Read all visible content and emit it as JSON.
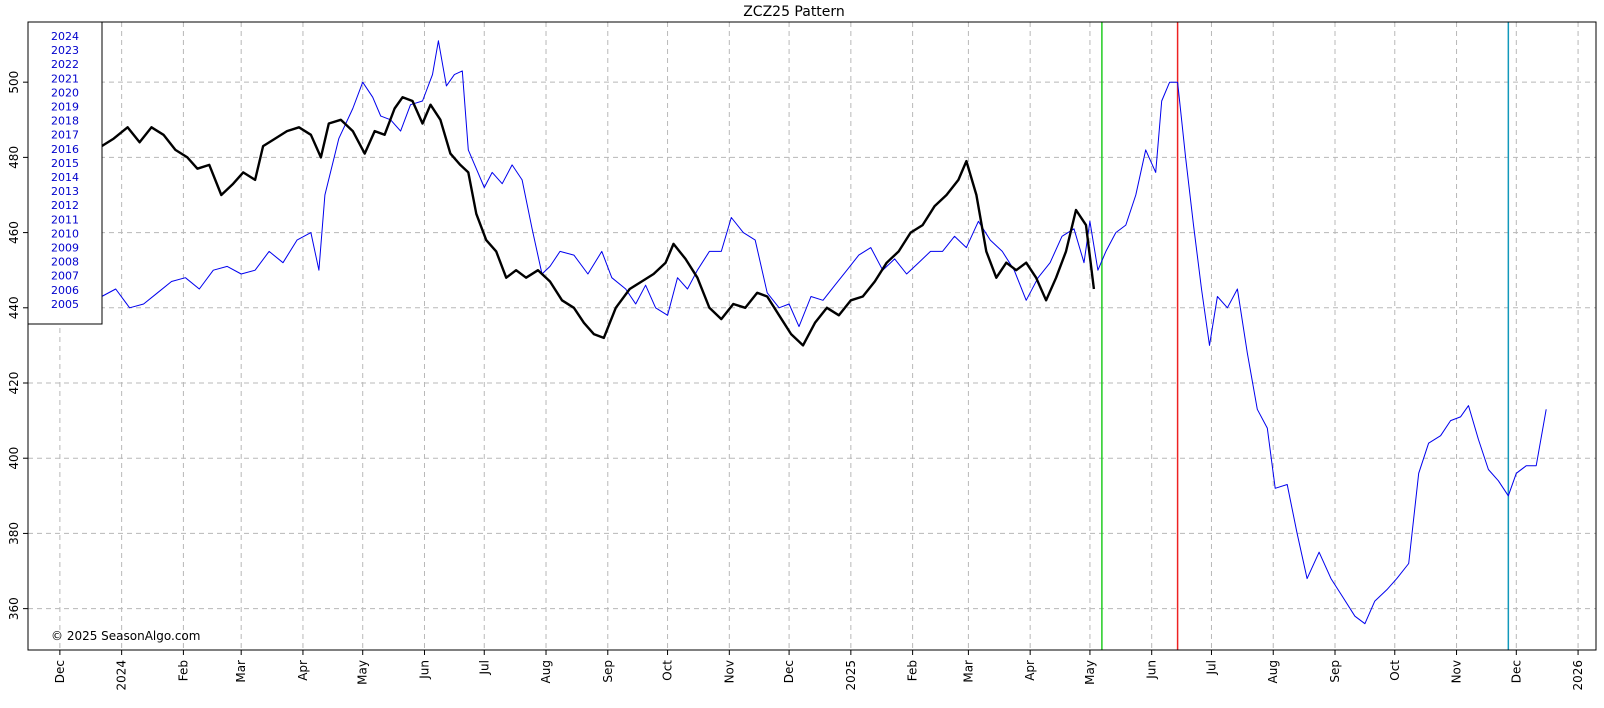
{
  "chart_data": {
    "type": "line",
    "title": "ZCZ25  Pattern",
    "copyright": "© 2025 SeasonAlgo.com",
    "xlabel": "",
    "ylabel": "",
    "x_range": [
      "2023-11-15",
      "2026-01-10"
    ],
    "ylim": [
      349,
      516
    ],
    "y_ticks": [
      360,
      380,
      400,
      420,
      440,
      460,
      480,
      500
    ],
    "x_ticks": [
      {
        "label": "Dec",
        "date": "2023-12-01"
      },
      {
        "label": "2024",
        "date": "2024-01-01"
      },
      {
        "label": "Feb",
        "date": "2024-02-01"
      },
      {
        "label": "Mar",
        "date": "2024-03-01"
      },
      {
        "label": "Apr",
        "date": "2024-04-01"
      },
      {
        "label": "May",
        "date": "2024-05-01"
      },
      {
        "label": "Jun",
        "date": "2024-06-01"
      },
      {
        "label": "Jul",
        "date": "2024-07-01"
      },
      {
        "label": "Aug",
        "date": "2024-08-01"
      },
      {
        "label": "Sep",
        "date": "2024-09-01"
      },
      {
        "label": "Oct",
        "date": "2024-10-01"
      },
      {
        "label": "Nov",
        "date": "2024-11-01"
      },
      {
        "label": "Dec",
        "date": "2024-12-01"
      },
      {
        "label": "2025",
        "date": "2025-01-01"
      },
      {
        "label": "Feb",
        "date": "2025-02-01"
      },
      {
        "label": "Mar",
        "date": "2025-03-01"
      },
      {
        "label": "Apr",
        "date": "2025-04-01"
      },
      {
        "label": "May",
        "date": "2025-05-01"
      },
      {
        "label": "Jun",
        "date": "2025-06-01"
      },
      {
        "label": "Jul",
        "date": "2025-07-01"
      },
      {
        "label": "Aug",
        "date": "2025-08-01"
      },
      {
        "label": "Sep",
        "date": "2025-09-01"
      },
      {
        "label": "Oct",
        "date": "2025-10-01"
      },
      {
        "label": "Nov",
        "date": "2025-11-01"
      },
      {
        "label": "Dec",
        "date": "2025-12-01"
      },
      {
        "label": "2026",
        "date": "2026-01-01"
      }
    ],
    "grid": true,
    "legend": {
      "placement": "top-left",
      "entries": [
        "2024",
        "2023",
        "2022",
        "2021",
        "2020",
        "2019",
        "2018",
        "2017",
        "2016",
        "2015",
        "2014",
        "2013",
        "2012",
        "2011",
        "2010",
        "2009",
        "2008",
        "2007",
        "2006",
        "2005"
      ]
    },
    "vlines": [
      {
        "date": "2025-05-07",
        "color": "#22cc22"
      },
      {
        "date": "2025-06-14",
        "color": "#ee2222"
      },
      {
        "date": "2025-11-27",
        "color": "#1199bb"
      }
    ],
    "series": [
      {
        "color": "#0000ee",
        "points": [
          [
            "2023-11-15",
            439
          ],
          [
            "2023-11-20",
            445
          ],
          [
            "2023-11-25",
            442
          ],
          [
            "2023-12-01",
            441
          ],
          [
            "2023-12-08",
            444
          ],
          [
            "2023-12-15",
            441
          ],
          [
            "2023-12-22",
            443
          ],
          [
            "2023-12-29",
            445
          ],
          [
            "2024-01-05",
            440
          ],
          [
            "2024-01-12",
            441
          ],
          [
            "2024-01-19",
            444
          ],
          [
            "2024-01-26",
            447
          ],
          [
            "2024-02-02",
            448
          ],
          [
            "2024-02-09",
            445
          ],
          [
            "2024-02-16",
            450
          ],
          [
            "2024-02-23",
            451
          ],
          [
            "2024-03-01",
            449
          ],
          [
            "2024-03-08",
            450
          ],
          [
            "2024-03-15",
            455
          ],
          [
            "2024-03-22",
            452
          ],
          [
            "2024-03-29",
            458
          ],
          [
            "2024-04-05",
            460
          ],
          [
            "2024-04-09",
            450
          ],
          [
            "2024-04-12",
            470
          ],
          [
            "2024-04-19",
            485
          ],
          [
            "2024-04-26",
            493
          ],
          [
            "2024-05-01",
            500
          ],
          [
            "2024-05-06",
            496
          ],
          [
            "2024-05-10",
            491
          ],
          [
            "2024-05-15",
            490
          ],
          [
            "2024-05-20",
            487
          ],
          [
            "2024-05-25",
            494
          ],
          [
            "2024-05-31",
            495
          ],
          [
            "2024-06-05",
            502
          ],
          [
            "2024-06-08",
            511
          ],
          [
            "2024-06-12",
            499
          ],
          [
            "2024-06-16",
            502
          ],
          [
            "2024-06-20",
            503
          ],
          [
            "2024-06-23",
            482
          ],
          [
            "2024-06-27",
            477
          ],
          [
            "2024-07-01",
            472
          ],
          [
            "2024-07-05",
            476
          ],
          [
            "2024-07-10",
            473
          ],
          [
            "2024-07-15",
            478
          ],
          [
            "2024-07-20",
            474
          ],
          [
            "2024-07-25",
            461
          ],
          [
            "2024-07-30",
            449
          ],
          [
            "2024-08-03",
            451
          ],
          [
            "2024-08-08",
            455
          ],
          [
            "2024-08-15",
            454
          ],
          [
            "2024-08-22",
            449
          ],
          [
            "2024-08-29",
            455
          ],
          [
            "2024-09-03",
            448
          ],
          [
            "2024-09-10",
            445
          ],
          [
            "2024-09-15",
            441
          ],
          [
            "2024-09-20",
            446
          ],
          [
            "2024-09-25",
            440
          ],
          [
            "2024-10-01",
            438
          ],
          [
            "2024-10-06",
            448
          ],
          [
            "2024-10-11",
            445
          ],
          [
            "2024-10-16",
            450
          ],
          [
            "2024-10-22",
            455
          ],
          [
            "2024-10-28",
            455
          ],
          [
            "2024-11-02",
            464
          ],
          [
            "2024-11-08",
            460
          ],
          [
            "2024-11-14",
            458
          ],
          [
            "2024-11-20",
            444
          ],
          [
            "2024-11-26",
            440
          ],
          [
            "2024-12-01",
            441
          ],
          [
            "2024-12-06",
            435
          ],
          [
            "2024-12-12",
            443
          ],
          [
            "2024-12-18",
            442
          ],
          [
            "2024-12-24",
            446
          ],
          [
            "2024-12-30",
            450
          ],
          [
            "2025-01-05",
            454
          ],
          [
            "2025-01-11",
            456
          ],
          [
            "2025-01-17",
            450
          ],
          [
            "2025-01-23",
            453
          ],
          [
            "2025-01-29",
            449
          ],
          [
            "2025-02-04",
            452
          ],
          [
            "2025-02-10",
            455
          ],
          [
            "2025-02-16",
            455
          ],
          [
            "2025-02-22",
            459
          ],
          [
            "2025-02-28",
            456
          ],
          [
            "2025-03-06",
            463
          ],
          [
            "2025-03-12",
            458
          ],
          [
            "2025-03-18",
            455
          ],
          [
            "2025-03-24",
            450
          ],
          [
            "2025-03-30",
            442
          ],
          [
            "2025-04-05",
            448
          ],
          [
            "2025-04-11",
            452
          ],
          [
            "2025-04-17",
            459
          ],
          [
            "2025-04-23",
            461
          ],
          [
            "2025-04-28",
            452
          ],
          [
            "2025-05-01",
            463
          ],
          [
            "2025-05-05",
            450
          ],
          [
            "2025-05-09",
            455
          ],
          [
            "2025-05-14",
            460
          ],
          [
            "2025-05-19",
            462
          ],
          [
            "2025-05-24",
            470
          ],
          [
            "2025-05-29",
            482
          ],
          [
            "2025-06-03",
            476
          ],
          [
            "2025-06-06",
            495
          ],
          [
            "2025-06-10",
            500
          ],
          [
            "2025-06-14",
            500
          ],
          [
            "2025-06-18",
            480
          ],
          [
            "2025-06-22",
            462
          ],
          [
            "2025-06-26",
            445
          ],
          [
            "2025-06-30",
            430
          ],
          [
            "2025-07-04",
            443
          ],
          [
            "2025-07-09",
            440
          ],
          [
            "2025-07-14",
            445
          ],
          [
            "2025-07-19",
            428
          ],
          [
            "2025-07-24",
            413
          ],
          [
            "2025-07-29",
            408
          ],
          [
            "2025-08-02",
            392
          ],
          [
            "2025-08-08",
            393
          ],
          [
            "2025-08-13",
            380
          ],
          [
            "2025-08-18",
            368
          ],
          [
            "2025-08-24",
            375
          ],
          [
            "2025-08-30",
            368
          ],
          [
            "2025-09-05",
            363
          ],
          [
            "2025-09-11",
            358
          ],
          [
            "2025-09-16",
            356
          ],
          [
            "2025-09-21",
            362
          ],
          [
            "2025-09-27",
            365
          ],
          [
            "2025-10-02",
            368
          ],
          [
            "2025-10-08",
            372
          ],
          [
            "2025-10-13",
            396
          ],
          [
            "2025-10-18",
            404
          ],
          [
            "2025-10-24",
            406
          ],
          [
            "2025-10-29",
            410
          ],
          [
            "2025-11-03",
            411
          ],
          [
            "2025-11-07",
            414
          ],
          [
            "2025-11-12",
            405
          ],
          [
            "2025-11-17",
            397
          ],
          [
            "2025-11-22",
            394
          ],
          [
            "2025-11-27",
            390
          ],
          [
            "2025-12-01",
            396
          ],
          [
            "2025-12-06",
            398
          ],
          [
            "2025-12-11",
            398
          ],
          [
            "2025-12-16",
            413
          ]
        ]
      },
      {
        "color": "#000000",
        "points": [
          [
            "2023-11-15",
            504
          ],
          [
            "2023-11-20",
            505
          ],
          [
            "2023-11-24",
            508
          ],
          [
            "2023-11-28",
            505
          ],
          [
            "2023-12-03",
            500
          ],
          [
            "2023-12-07",
            498
          ],
          [
            "2023-12-12",
            494
          ],
          [
            "2023-12-16",
            485
          ],
          [
            "2023-12-22",
            483
          ],
          [
            "2023-12-28",
            485
          ],
          [
            "2024-01-04",
            488
          ],
          [
            "2024-01-10",
            484
          ],
          [
            "2024-01-16",
            488
          ],
          [
            "2024-01-22",
            486
          ],
          [
            "2024-01-28",
            482
          ],
          [
            "2024-02-03",
            480
          ],
          [
            "2024-02-08",
            477
          ],
          [
            "2024-02-14",
            478
          ],
          [
            "2024-02-20",
            470
          ],
          [
            "2024-02-26",
            473
          ],
          [
            "2024-03-02",
            476
          ],
          [
            "2024-03-08",
            474
          ],
          [
            "2024-03-12",
            483
          ],
          [
            "2024-03-18",
            485
          ],
          [
            "2024-03-24",
            487
          ],
          [
            "2024-03-30",
            488
          ],
          [
            "2024-04-05",
            486
          ],
          [
            "2024-04-10",
            480
          ],
          [
            "2024-04-14",
            489
          ],
          [
            "2024-04-20",
            490
          ],
          [
            "2024-04-26",
            487
          ],
          [
            "2024-05-02",
            481
          ],
          [
            "2024-05-07",
            487
          ],
          [
            "2024-05-12",
            486
          ],
          [
            "2024-05-17",
            493
          ],
          [
            "2024-05-21",
            496
          ],
          [
            "2024-05-26",
            495
          ],
          [
            "2024-05-31",
            489
          ],
          [
            "2024-06-04",
            494
          ],
          [
            "2024-06-09",
            490
          ],
          [
            "2024-06-14",
            481
          ],
          [
            "2024-06-19",
            478
          ],
          [
            "2024-06-23",
            476
          ],
          [
            "2024-06-27",
            465
          ],
          [
            "2024-07-02",
            458
          ],
          [
            "2024-07-07",
            455
          ],
          [
            "2024-07-12",
            448
          ],
          [
            "2024-07-17",
            450
          ],
          [
            "2024-07-22",
            448
          ],
          [
            "2024-07-28",
            450
          ],
          [
            "2024-08-03",
            447
          ],
          [
            "2024-08-09",
            442
          ],
          [
            "2024-08-15",
            440
          ],
          [
            "2024-08-20",
            436
          ],
          [
            "2024-08-25",
            433
          ],
          [
            "2024-08-30",
            432
          ],
          [
            "2024-09-05",
            440
          ],
          [
            "2024-09-12",
            445
          ],
          [
            "2024-09-18",
            447
          ],
          [
            "2024-09-24",
            449
          ],
          [
            "2024-09-30",
            452
          ],
          [
            "2024-10-04",
            457
          ],
          [
            "2024-10-10",
            453
          ],
          [
            "2024-10-16",
            448
          ],
          [
            "2024-10-22",
            440
          ],
          [
            "2024-10-28",
            437
          ],
          [
            "2024-11-03",
            441
          ],
          [
            "2024-11-09",
            440
          ],
          [
            "2024-11-15",
            444
          ],
          [
            "2024-11-20",
            443
          ],
          [
            "2024-11-26",
            438
          ],
          [
            "2024-12-02",
            433
          ],
          [
            "2024-12-08",
            430
          ],
          [
            "2024-12-14",
            436
          ],
          [
            "2024-12-20",
            440
          ],
          [
            "2024-12-26",
            438
          ],
          [
            "2025-01-01",
            442
          ],
          [
            "2025-01-07",
            443
          ],
          [
            "2025-01-13",
            447
          ],
          [
            "2025-01-19",
            452
          ],
          [
            "2025-01-25",
            455
          ],
          [
            "2025-01-31",
            460
          ],
          [
            "2025-02-06",
            462
          ],
          [
            "2025-02-12",
            467
          ],
          [
            "2025-02-18",
            470
          ],
          [
            "2025-02-24",
            474
          ],
          [
            "2025-02-28",
            479
          ],
          [
            "2025-03-05",
            470
          ],
          [
            "2025-03-10",
            455
          ],
          [
            "2025-03-15",
            448
          ],
          [
            "2025-03-20",
            452
          ],
          [
            "2025-03-25",
            450
          ],
          [
            "2025-03-30",
            452
          ],
          [
            "2025-04-04",
            448
          ],
          [
            "2025-04-09",
            442
          ],
          [
            "2025-04-14",
            448
          ],
          [
            "2025-04-19",
            455
          ],
          [
            "2025-04-24",
            466
          ],
          [
            "2025-04-29",
            462
          ],
          [
            "2025-05-03",
            445
          ]
        ]
      }
    ]
  }
}
